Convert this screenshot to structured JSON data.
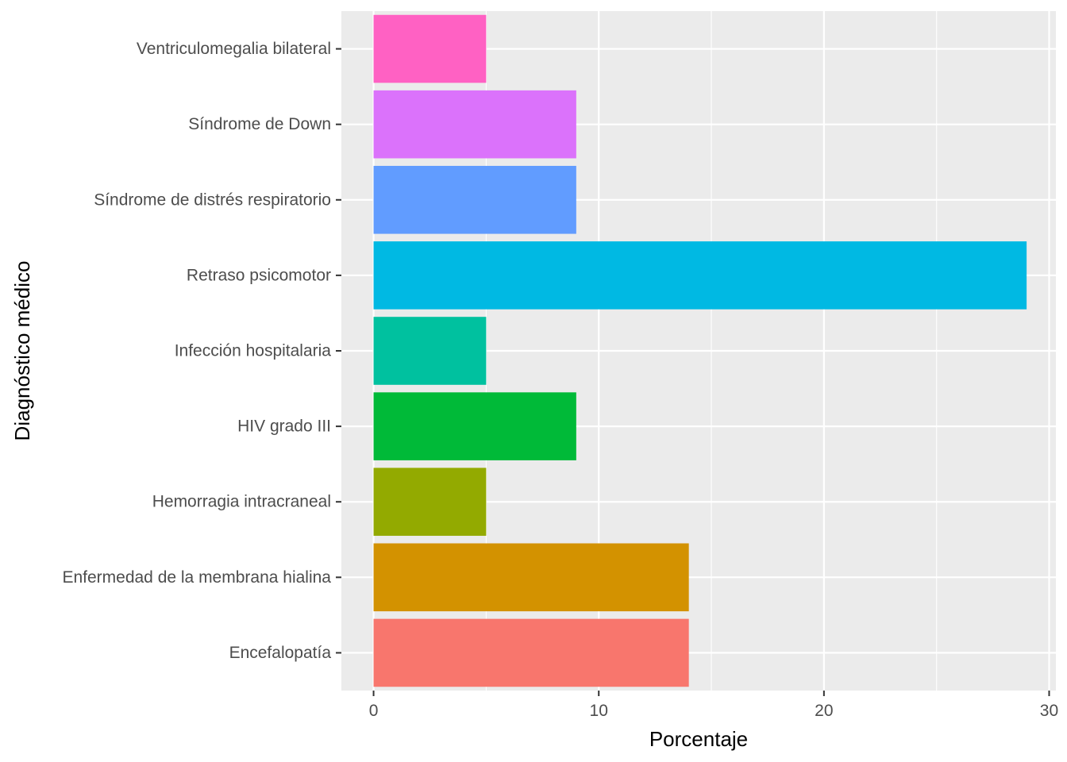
{
  "chart_data": {
    "type": "bar",
    "orientation": "horizontal",
    "xlabel": "Porcentaje",
    "ylabel": "Diagnóstico médico",
    "xlim": [
      -1.43,
      30.3
    ],
    "x_ticks": [
      0,
      10,
      20,
      30
    ],
    "grid": true,
    "legend": "none",
    "panel_background": "#ebebeb",
    "grid_color": "#ffffff",
    "categories": [
      "Encefalopatía",
      "Enfermedad de la membrana hialina",
      "Hemorragia intracraneal",
      "HIV grado III",
      "Infección hospitalaria",
      "Retraso psicomotor",
      "Síndrome de distrés respiratorio",
      "Síndrome de Down",
      "Ventriculomegalia bilateral"
    ],
    "values": [
      14,
      14,
      5,
      9,
      5,
      29,
      9,
      9,
      5
    ],
    "colors": [
      "#f8766d",
      "#d39200",
      "#93aa00",
      "#00ba38",
      "#00c19f",
      "#00b9e3",
      "#619cff",
      "#db72fb",
      "#ff61c3"
    ]
  }
}
